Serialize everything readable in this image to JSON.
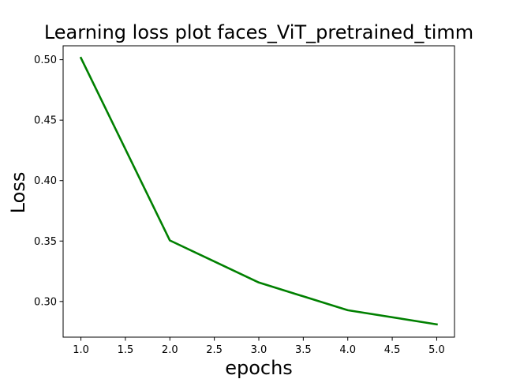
{
  "chart_data": {
    "type": "line",
    "title": "Learning loss plot faces_ViT_pretrained_timm",
    "xlabel": "epochs",
    "ylabel": "Loss",
    "xlim": [
      0.8,
      5.2
    ],
    "ylim": [
      0.2705,
      0.5115
    ],
    "x_ticks": [
      1.0,
      1.5,
      2.0,
      2.5,
      3.0,
      3.5,
      4.0,
      4.5,
      5.0
    ],
    "x_tick_labels": [
      "1.0",
      "1.5",
      "2.0",
      "2.5",
      "3.0",
      "3.5",
      "4.0",
      "4.5",
      "5.0"
    ],
    "y_ticks": [
      0.3,
      0.35,
      0.4,
      0.45,
      0.5
    ],
    "y_tick_labels": [
      "0.30",
      "0.35",
      "0.40",
      "0.45",
      "0.50"
    ],
    "grid": false,
    "series": [
      {
        "x": [
          1,
          2,
          3,
          4,
          5
        ],
        "values": [
          0.5015,
          0.3505,
          0.3157,
          0.2928,
          0.2811
        ],
        "color": "#008000"
      }
    ]
  }
}
